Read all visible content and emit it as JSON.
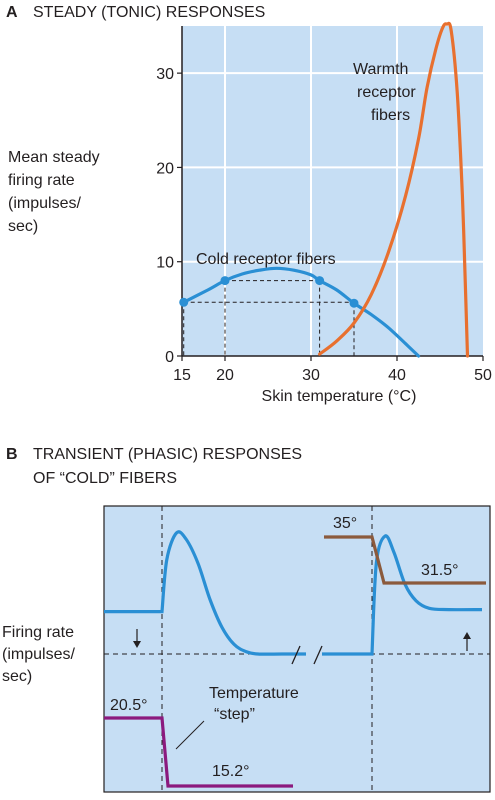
{
  "colors": {
    "panel_bg": "#c6def4",
    "cold": "#2a8fd4",
    "warm": "#e8702f",
    "step": "#8b1a7e",
    "transient_step2": "#8b5a3c",
    "grid": "#ffffff",
    "ink": "#231f20"
  },
  "panel_a": {
    "letter": "A",
    "title": "STEADY (TONIC) RESPONSES",
    "ylabel_lines": [
      "Mean steady",
      "firing rate",
      "(impulses/",
      "sec)"
    ],
    "xlabel": "Skin temperature (°C)",
    "warm_label_lines": [
      "Warmth",
      "receptor",
      "fibers"
    ],
    "cold_label": "Cold receptor fibers"
  },
  "panel_b": {
    "letter": "B",
    "title_lines": [
      "TRANSIENT (PHASIC) RESPONSES",
      "OF “COLD” FIBERS"
    ],
    "ylabel_lines": [
      "Firing rate",
      "(impulses/",
      "sec)"
    ],
    "step_label_lines": [
      "Temperature",
      "“step”"
    ],
    "temp_start_left": "20.5°",
    "temp_end_left": "15.2°",
    "temp_start_right": "35°",
    "temp_end_right": "31.5°"
  },
  "chart_data": [
    {
      "type": "line",
      "panel": "A",
      "xlabel": "Skin temperature (°C)",
      "ylabel": "Mean steady firing rate (impulses/ sec)",
      "xlim": [
        15,
        50
      ],
      "ylim": [
        0,
        35
      ],
      "xticks": [
        15,
        20,
        30,
        40,
        50
      ],
      "yticks": [
        0,
        10,
        20,
        30
      ],
      "grid": true,
      "series": [
        {
          "name": "Cold receptor fibers",
          "x": [
            15.2,
            18,
            20,
            22,
            24,
            26,
            28,
            30,
            31,
            33,
            35,
            37,
            39,
            41,
            42.5
          ],
          "y": [
            5.7,
            7.0,
            8.0,
            8.7,
            9.1,
            9.3,
            9.1,
            8.6,
            8.0,
            7.0,
            5.6,
            4.4,
            3.0,
            1.3,
            0.0
          ],
          "markers": [
            [
              15.2,
              5.7
            ],
            [
              20,
              8.0
            ],
            [
              31,
              8.0
            ],
            [
              35,
              5.6
            ]
          ]
        },
        {
          "name": "Warmth receptor fibers",
          "x": [
            31,
            33,
            35,
            37,
            39,
            41,
            42.5,
            43.5,
            44.5,
            45.3,
            45.8,
            46.3,
            47,
            47.6,
            48,
            48.2
          ],
          "y": [
            0.2,
            1.6,
            3.5,
            6.5,
            11,
            17,
            23,
            28.5,
            32.5,
            34.8,
            35.2,
            34.5,
            28,
            17,
            6,
            0
          ]
        }
      ]
    },
    {
      "type": "line",
      "panel": "B",
      "ylabel": "Firing rate (impulses/ sec)",
      "grid": false,
      "series": [
        {
          "name": "Firing rate (cold → 15.2°)",
          "x": [
            0,
            1,
            1.2,
            1.6,
            2.0,
            2.5,
            3.0,
            3.5,
            4.0,
            4.5,
            5.0,
            6.0,
            7.0
          ],
          "y": [
            0.35,
            0.35,
            0.78,
            1.0,
            0.95,
            0.75,
            0.45,
            0.22,
            0.08,
            0.02,
            0.0,
            0.0,
            0.0
          ]
        },
        {
          "name": "Temperature step 20.5° → 15.2°",
          "x": [
            0,
            1,
            1.3,
            5.0
          ],
          "y": [
            20.5,
            20.5,
            15.2,
            15.2
          ]
        },
        {
          "name": "Firing rate (warm 35° → 31.5°)",
          "x": [
            0,
            1,
            1.2,
            1.6,
            2.0,
            2.5,
            3.0,
            3.6,
            4.5,
            6.0
          ],
          "y": [
            0.0,
            0.0,
            0.72,
            0.93,
            0.8,
            0.55,
            0.42,
            0.36,
            0.35,
            0.35
          ]
        },
        {
          "name": "Temperature step 35° → 31.5°",
          "x": [
            0,
            1,
            1.3,
            5.0
          ],
          "y": [
            35,
            35,
            31.5,
            31.5
          ]
        }
      ]
    }
  ]
}
